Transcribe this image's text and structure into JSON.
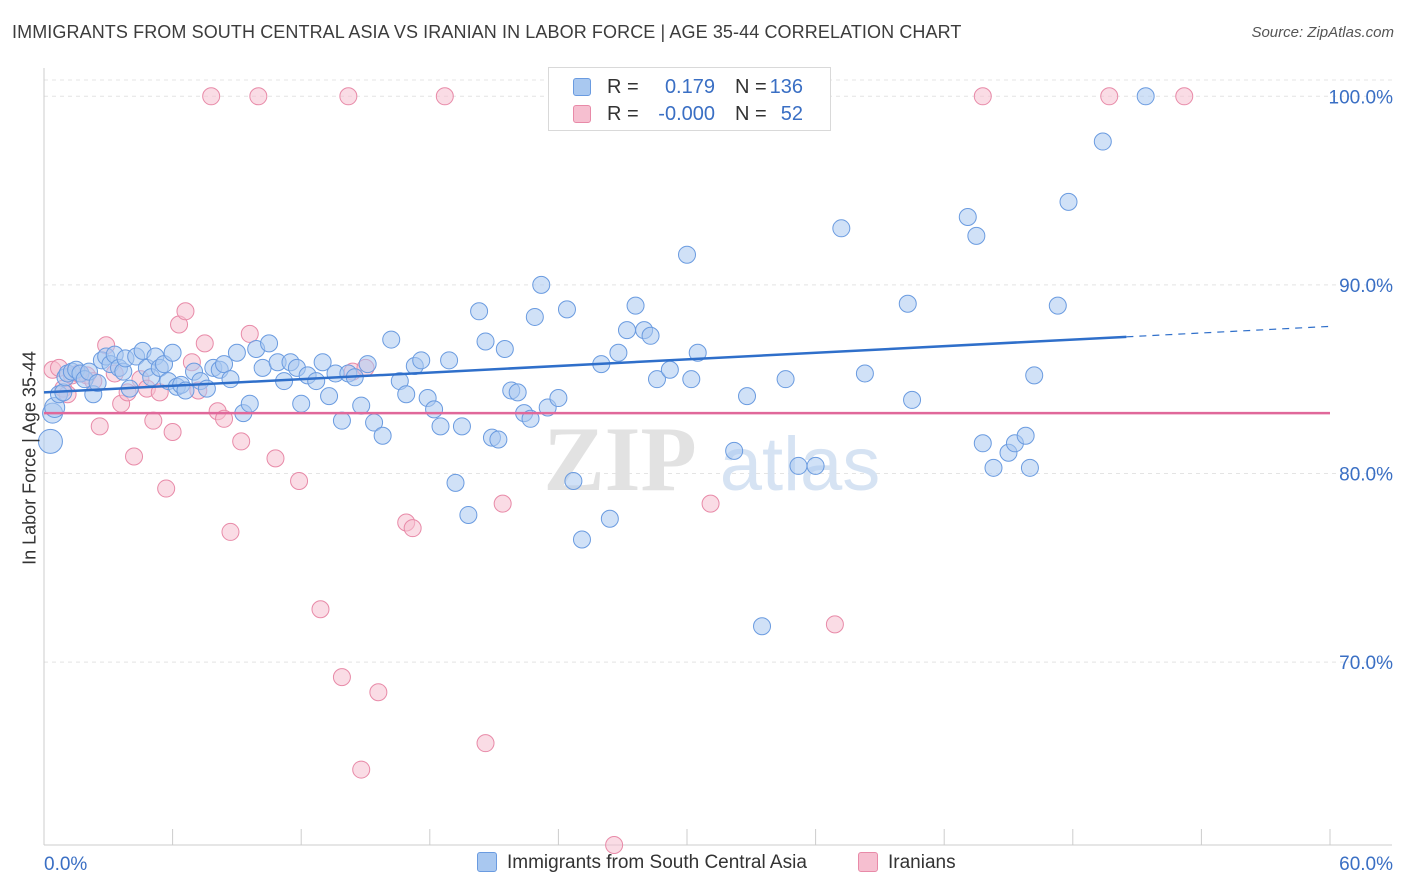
{
  "title": "IMMIGRANTS FROM SOUTH CENTRAL ASIA VS IRANIAN IN LABOR FORCE | AGE 35-44 CORRELATION CHART",
  "source": "Source: ZipAtlas.com",
  "watermark": {
    "zip": "ZIP",
    "atlas": "atlas"
  },
  "legend": {
    "rows": [
      {
        "r_label": "R =",
        "r_value": "0.179",
        "n_label": "N =",
        "n_value": "136",
        "color": "#a9c8f0",
        "border": "#6a9be0"
      },
      {
        "r_label": "R =",
        "r_value": "-0.000",
        "n_label": "N =",
        "n_value": "52",
        "color": "#f6bfd0",
        "border": "#e88aa8"
      }
    ]
  },
  "bottom_legend": [
    {
      "label": "Immigrants from South Central Asia",
      "color": "#a9c8f0",
      "border": "#6a9be0"
    },
    {
      "label": "Iranians",
      "color": "#f6bfd0",
      "border": "#e88aa8"
    }
  ],
  "chart_data": {
    "type": "scatter",
    "title": "IMMIGRANTS FROM SOUTH CENTRAL ASIA VS IRANIAN IN LABOR FORCE | AGE 35-44 CORRELATION CHART",
    "xlabel": "",
    "ylabel": "In Labor Force | Age 35-44",
    "xlim": [
      0,
      60
    ],
    "ylim": [
      60.3,
      101.5
    ],
    "x_tick_labels": [
      "0.0%",
      "60.0%"
    ],
    "y_ticks": [
      70,
      80,
      90,
      100
    ],
    "y_tick_labels": [
      "70.0%",
      "80.0%",
      "90.0%",
      "100.0%"
    ],
    "grid": true,
    "legend_position": "top-center",
    "colors": {
      "blue_fill": "#a9c8f0",
      "blue_stroke": "#6a9be0",
      "blue_line": "#2f6fca",
      "pink_fill": "#f6bfd0",
      "pink_stroke": "#e88aa8",
      "pink_line": "#e0689a"
    },
    "series": [
      {
        "name": "Immigrants from South Central Asia",
        "trend": {
          "x": [
            0,
            60
          ],
          "y": [
            84.3,
            87.8
          ],
          "solid_until_x": 50.5
        },
        "points": [
          [
            0.3,
            81.7
          ],
          [
            0.4,
            83.2
          ],
          [
            0.5,
            83.5
          ],
          [
            0.7,
            84.2
          ],
          [
            0.9,
            84.3
          ],
          [
            1.0,
            85.1
          ],
          [
            1.1,
            85.3
          ],
          [
            1.3,
            85.4
          ],
          [
            1.5,
            85.5
          ],
          [
            1.7,
            85.3
          ],
          [
            1.9,
            85.0
          ],
          [
            2.1,
            85.4
          ],
          [
            2.3,
            84.2
          ],
          [
            2.5,
            84.8
          ],
          [
            2.7,
            86.0
          ],
          [
            2.9,
            86.2
          ],
          [
            3.1,
            85.8
          ],
          [
            3.3,
            86.3
          ],
          [
            3.5,
            85.6
          ],
          [
            3.7,
            85.4
          ],
          [
            3.8,
            86.1
          ],
          [
            4.0,
            84.5
          ],
          [
            4.3,
            86.2
          ],
          [
            4.6,
            86.5
          ],
          [
            4.8,
            85.6
          ],
          [
            5.0,
            85.1
          ],
          [
            5.2,
            86.2
          ],
          [
            5.4,
            85.6
          ],
          [
            5.6,
            85.8
          ],
          [
            5.8,
            84.9
          ],
          [
            6.0,
            86.4
          ],
          [
            6.2,
            84.6
          ],
          [
            6.4,
            84.7
          ],
          [
            6.6,
            84.4
          ],
          [
            7.0,
            85.4
          ],
          [
            7.3,
            84.9
          ],
          [
            7.6,
            84.5
          ],
          [
            7.9,
            85.6
          ],
          [
            8.2,
            85.5
          ],
          [
            8.4,
            85.8
          ],
          [
            8.7,
            85.0
          ],
          [
            9.0,
            86.4
          ],
          [
            9.3,
            83.2
          ],
          [
            9.6,
            83.7
          ],
          [
            9.9,
            86.6
          ],
          [
            10.2,
            85.6
          ],
          [
            10.5,
            86.9
          ],
          [
            10.9,
            85.9
          ],
          [
            11.2,
            84.9
          ],
          [
            11.5,
            85.9
          ],
          [
            11.8,
            85.6
          ],
          [
            12.0,
            83.7
          ],
          [
            12.3,
            85.2
          ],
          [
            12.7,
            84.9
          ],
          [
            13.0,
            85.9
          ],
          [
            13.3,
            84.1
          ],
          [
            13.6,
            85.3
          ],
          [
            13.9,
            82.8
          ],
          [
            14.2,
            85.3
          ],
          [
            14.5,
            85.1
          ],
          [
            14.8,
            83.6
          ],
          [
            15.1,
            85.8
          ],
          [
            15.4,
            82.7
          ],
          [
            15.8,
            82.0
          ],
          [
            16.2,
            87.1
          ],
          [
            16.6,
            84.9
          ],
          [
            16.9,
            84.2
          ],
          [
            17.3,
            85.7
          ],
          [
            17.6,
            86.0
          ],
          [
            17.9,
            84.0
          ],
          [
            18.2,
            83.4
          ],
          [
            18.5,
            82.5
          ],
          [
            18.9,
            86.0
          ],
          [
            19.2,
            79.5
          ],
          [
            19.5,
            82.5
          ],
          [
            19.8,
            77.8
          ],
          [
            20.3,
            88.6
          ],
          [
            20.6,
            87.0
          ],
          [
            20.9,
            81.9
          ],
          [
            21.2,
            81.8
          ],
          [
            21.5,
            86.6
          ],
          [
            21.8,
            84.4
          ],
          [
            22.1,
            84.3
          ],
          [
            22.4,
            83.2
          ],
          [
            22.7,
            82.9
          ],
          [
            22.9,
            88.3
          ],
          [
            23.2,
            90.0
          ],
          [
            23.5,
            83.5
          ],
          [
            24.0,
            84.0
          ],
          [
            24.4,
            88.7
          ],
          [
            24.7,
            79.6
          ],
          [
            25.1,
            76.5
          ],
          [
            26.0,
            85.8
          ],
          [
            26.4,
            77.6
          ],
          [
            26.8,
            86.4
          ],
          [
            27.2,
            87.6
          ],
          [
            27.6,
            88.9
          ],
          [
            28.0,
            87.6
          ],
          [
            28.3,
            87.3
          ],
          [
            28.6,
            85.0
          ],
          [
            29.2,
            85.5
          ],
          [
            30.0,
            91.6
          ],
          [
            30.2,
            85.0
          ],
          [
            30.5,
            86.4
          ],
          [
            32.2,
            81.2
          ],
          [
            32.8,
            84.1
          ],
          [
            33.5,
            71.9
          ],
          [
            34.6,
            85.0
          ],
          [
            35.2,
            80.4
          ],
          [
            36.0,
            80.4
          ],
          [
            37.2,
            93.0
          ],
          [
            38.3,
            85.3
          ],
          [
            40.3,
            89.0
          ],
          [
            40.5,
            83.9
          ],
          [
            43.1,
            93.6
          ],
          [
            43.5,
            92.6
          ],
          [
            43.8,
            81.6
          ],
          [
            44.3,
            80.3
          ],
          [
            45.0,
            81.1
          ],
          [
            45.3,
            81.6
          ],
          [
            45.8,
            82.0
          ],
          [
            46.0,
            80.3
          ],
          [
            46.2,
            85.2
          ],
          [
            47.3,
            88.9
          ],
          [
            47.8,
            94.4
          ],
          [
            49.4,
            97.6
          ],
          [
            51.4,
            100.0
          ]
        ]
      },
      {
        "name": "Iranians",
        "trend": {
          "x": [
            0,
            60
          ],
          "y": [
            83.2,
            83.2
          ]
        },
        "points": [
          [
            0.4,
            85.5
          ],
          [
            0.7,
            85.6
          ],
          [
            0.9,
            84.5
          ],
          [
            1.1,
            84.2
          ],
          [
            1.3,
            85.2
          ],
          [
            1.6,
            85.3
          ],
          [
            2.0,
            85.2
          ],
          [
            2.3,
            84.9
          ],
          [
            2.6,
            82.5
          ],
          [
            2.9,
            86.8
          ],
          [
            3.3,
            85.3
          ],
          [
            3.6,
            83.7
          ],
          [
            3.9,
            84.3
          ],
          [
            4.2,
            80.9
          ],
          [
            4.5,
            85.0
          ],
          [
            4.8,
            84.5
          ],
          [
            5.1,
            82.8
          ],
          [
            5.4,
            84.3
          ],
          [
            5.7,
            79.2
          ],
          [
            6.0,
            82.2
          ],
          [
            6.3,
            87.9
          ],
          [
            6.6,
            88.6
          ],
          [
            6.9,
            85.9
          ],
          [
            7.2,
            84.4
          ],
          [
            7.5,
            86.9
          ],
          [
            7.8,
            100.0
          ],
          [
            8.1,
            83.3
          ],
          [
            8.4,
            82.9
          ],
          [
            8.7,
            76.9
          ],
          [
            9.2,
            81.7
          ],
          [
            9.6,
            87.4
          ],
          [
            10.0,
            100.0
          ],
          [
            10.8,
            80.8
          ],
          [
            11.9,
            79.6
          ],
          [
            12.9,
            72.8
          ],
          [
            13.9,
            69.2
          ],
          [
            14.2,
            100.0
          ],
          [
            14.4,
            85.4
          ],
          [
            14.8,
            64.3
          ],
          [
            15.0,
            85.6
          ],
          [
            15.6,
            68.4
          ],
          [
            16.9,
            77.4
          ],
          [
            17.2,
            77.1
          ],
          [
            18.7,
            100.0
          ],
          [
            20.6,
            65.7
          ],
          [
            21.4,
            78.4
          ],
          [
            26.6,
            60.3
          ],
          [
            31.1,
            78.4
          ],
          [
            36.9,
            72.0
          ],
          [
            43.8,
            100.0
          ],
          [
            49.7,
            100.0
          ],
          [
            53.2,
            100.0
          ]
        ]
      }
    ]
  }
}
